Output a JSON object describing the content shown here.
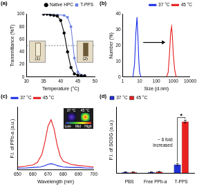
{
  "chart_data": [
    {
      "panel": "(a)",
      "type": "line",
      "x_label": "Temperature (°C)",
      "y_label": "Transmittance (%T)",
      "series": [
        {
          "name": "Native HPC",
          "color": "#000000",
          "marker": "circle",
          "x": [
            35,
            36,
            37,
            38,
            39,
            40,
            41,
            42,
            43,
            44,
            45,
            46,
            47
          ],
          "values": [
            100,
            100,
            99,
            98,
            97,
            90,
            70,
            40,
            15,
            5,
            3,
            2,
            2
          ]
        },
        {
          "name": "T-PPS",
          "color": "#6b7fe0",
          "marker": "square",
          "x": [
            35,
            37,
            39,
            41,
            42,
            43,
            44,
            45,
            46,
            47
          ],
          "values": [
            100,
            100,
            99,
            98,
            95,
            80,
            30,
            8,
            3,
            2
          ]
        }
      ],
      "xlim": [
        30,
        50
      ],
      "xticks": [
        30,
        35,
        40,
        45,
        50
      ],
      "ylim": [
        0,
        100
      ],
      "yticks": [
        0,
        20,
        40,
        60,
        80,
        100
      ],
      "hline": 50,
      "legend": "top-right",
      "grid": false,
      "annotations": [
        "(1)",
        "(2)"
      ]
    },
    {
      "panel": "(b)",
      "type": "line",
      "x_label": "Size (d.nm)",
      "y_label": "Number (%)",
      "log": "x",
      "series": [
        {
          "name": "37 °C",
          "color": "#1a2ee6",
          "x": [
            4,
            5,
            6,
            7,
            8,
            9,
            10,
            12
          ],
          "values": [
            0,
            8,
            28,
            38,
            25,
            10,
            3,
            0
          ]
        },
        {
          "name": "45 °C",
          "color": "#e61a1a",
          "x": [
            400,
            500,
            600,
            700,
            800,
            900,
            1000,
            1200,
            1500
          ],
          "values": [
            0,
            3,
            15,
            28,
            32,
            25,
            15,
            5,
            0
          ]
        }
      ],
      "xlim": [
        1,
        10000
      ],
      "xticks": [
        1,
        10,
        100,
        1000,
        10000
      ],
      "ylim": [
        0,
        40
      ],
      "yticks": [
        0,
        10,
        20,
        30,
        40
      ],
      "legend": "top-right",
      "grid": false
    },
    {
      "panel": "(c)",
      "type": "line",
      "x_label": "Wavelength (nm)",
      "y_label": "F.I. of PPb-a (a.u.)",
      "series": [
        {
          "name": "37 °C",
          "color": "#1a2ee6",
          "x": [
            650,
            655,
            660,
            665,
            668,
            670,
            672,
            674,
            676,
            680,
            685,
            690,
            695,
            700
          ],
          "values": [
            3,
            3,
            4,
            5,
            7,
            9,
            10,
            9,
            7,
            5,
            4,
            4,
            3,
            3
          ]
        },
        {
          "name": "45 °C",
          "color": "#e61a1a",
          "x": [
            650,
            655,
            660,
            663,
            666,
            668,
            670,
            672,
            674,
            676,
            678,
            680,
            685,
            690,
            695,
            700
          ],
          "values": [
            5,
            6,
            8,
            12,
            25,
            45,
            70,
            80,
            65,
            40,
            22,
            14,
            9,
            7,
            6,
            5
          ]
        }
      ],
      "xlim": [
        650,
        700
      ],
      "xticks": [
        650,
        660,
        670,
        680,
        690,
        700
      ],
      "ylim": [
        0,
        100
      ],
      "tick_labels": "x",
      "legend": "top-left",
      "grid": false,
      "inset": {
        "labels": [
          "37 °C",
          "45 °C"
        ],
        "colorbar": [
          "Low",
          "Mid",
          "High"
        ]
      }
    },
    {
      "panel": "(d)",
      "type": "bar",
      "y_label": "F.I. of SOSG (a.u.)",
      "categories": [
        "PBS",
        "Free PPb-a",
        "T-PPS"
      ],
      "series": [
        {
          "name": "37 °C",
          "color": "#1f2fd6",
          "values": [
            1.5,
            1.5,
            13
          ],
          "errors": [
            0.3,
            0.3,
            1.5
          ]
        },
        {
          "name": "45 °C",
          "color": "#e8201f",
          "values": [
            1.5,
            2,
            78
          ],
          "errors": [
            0.3,
            0.4,
            2
          ]
        }
      ],
      "ylim": [
        0,
        100
      ],
      "tick_labels": "x",
      "legend": "top-left",
      "grid": false,
      "significance": {
        "category": "T-PPS",
        "label": "*",
        "text": [
          "~ 6 fold",
          "increased"
        ]
      }
    }
  ]
}
